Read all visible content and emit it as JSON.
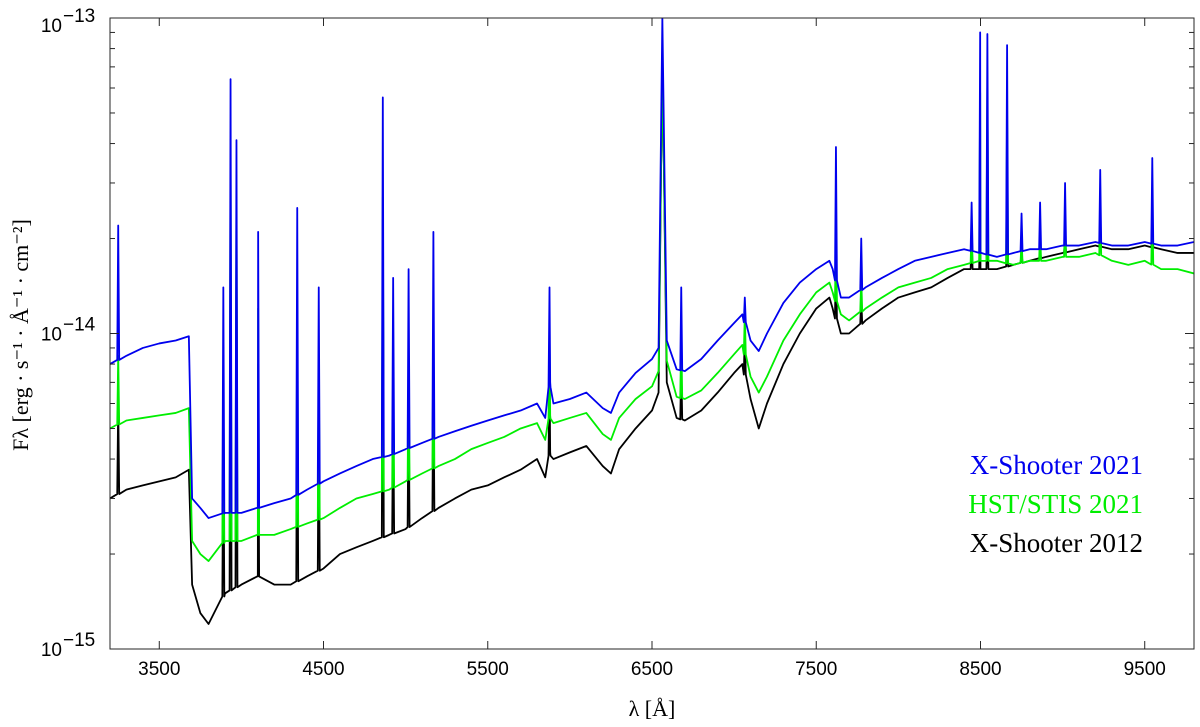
{
  "chart_data": {
    "type": "line",
    "xlabel": "λ [Å]",
    "ylabel": "Fλ [erg · s⁻¹ · Å⁻¹ · cm⁻²]",
    "xlim": [
      3200,
      9800
    ],
    "ylim": [
      1e-15,
      1e-13
    ],
    "yscale": "log",
    "grid": false,
    "legend_position": "bottom-right",
    "x_ticks": [
      3500,
      4500,
      5500,
      6500,
      7500,
      8500,
      9500
    ],
    "x_tick_labels": [
      "3500",
      "4500",
      "5500",
      "6500",
      "7500",
      "8500",
      "9500"
    ],
    "y_ticks": [
      {
        "value": 1e-15,
        "base": "10",
        "exp": "−15"
      },
      {
        "value": 1e-14,
        "base": "10",
        "exp": "−14"
      },
      {
        "value": 1e-13,
        "base": "10",
        "exp": "−13"
      }
    ],
    "series": [
      {
        "name": "X-Shooter 2012",
        "color": "#000000",
        "x": [
          3200,
          3300,
          3400,
          3500,
          3600,
          3680,
          3700,
          3750,
          3800,
          3900,
          4000,
          4100,
          4200,
          4300,
          4400,
          4500,
          4600,
          4700,
          4800,
          4900,
          5000,
          5100,
          5200,
          5300,
          5400,
          5500,
          5600,
          5700,
          5800,
          5850,
          5880,
          5900,
          6000,
          6100,
          6200,
          6250,
          6300,
          6400,
          6500,
          6540,
          6563,
          6590,
          6650,
          6700,
          6800,
          6900,
          7000,
          7050,
          7100,
          7150,
          7200,
          7300,
          7400,
          7500,
          7580,
          7600,
          7650,
          7700,
          7800,
          7900,
          8000,
          8100,
          8200,
          8300,
          8400,
          8500,
          8600,
          8700,
          8800,
          8900,
          9000,
          9100,
          9200,
          9300,
          9400,
          9500,
          9600,
          9700,
          9800
        ],
        "y": [
          3e-15,
          3.2e-15,
          3.3e-15,
          3.4e-15,
          3.5e-15,
          3.7e-15,
          1.6e-15,
          1.3e-15,
          1.2e-15,
          1.5e-15,
          1.6e-15,
          1.7e-15,
          1.6e-15,
          1.6e-15,
          1.7e-15,
          1.8e-15,
          2e-15,
          2.1e-15,
          2.2e-15,
          2.3e-15,
          2.4e-15,
          2.6e-15,
          2.8e-15,
          3e-15,
          3.2e-15,
          3.3e-15,
          3.5e-15,
          3.7e-15,
          4e-15,
          3.5e-15,
          4.2e-15,
          4e-15,
          4.2e-15,
          4.4e-15,
          3.8e-15,
          3.6e-15,
          4.3e-15,
          5e-15,
          5.7e-15,
          6.5e-15,
          7.7e-14,
          7e-15,
          5.4e-15,
          5.3e-15,
          5.7e-15,
          6.5e-15,
          7.5e-15,
          8e-15,
          6.2e-15,
          5e-15,
          6e-15,
          8e-15,
          1e-14,
          1.2e-14,
          1.3e-14,
          1.2e-14,
          1e-14,
          1e-14,
          1.1e-14,
          1.2e-14,
          1.3e-14,
          1.35e-14,
          1.4e-14,
          1.5e-14,
          1.6e-14,
          1.6e-14,
          1.6e-14,
          1.65e-14,
          1.7e-14,
          1.75e-14,
          1.8e-14,
          1.85e-14,
          1.9e-14,
          1.85e-14,
          1.85e-14,
          1.9e-14,
          1.85e-14,
          1.8e-14,
          1.8e-14
        ]
      },
      {
        "name": "HST/STIS 2021",
        "color": "#00ee00",
        "x": [
          3200,
          3300,
          3400,
          3500,
          3600,
          3680,
          3700,
          3750,
          3800,
          3900,
          4000,
          4100,
          4200,
          4300,
          4400,
          4500,
          4600,
          4700,
          4800,
          4900,
          5000,
          5100,
          5200,
          5300,
          5400,
          5500,
          5600,
          5700,
          5800,
          5850,
          5880,
          5900,
          6000,
          6100,
          6200,
          6250,
          6300,
          6400,
          6500,
          6540,
          6563,
          6590,
          6650,
          6700,
          6800,
          6900,
          7000,
          7050,
          7100,
          7150,
          7200,
          7300,
          7400,
          7500,
          7580,
          7600,
          7650,
          7700,
          7800,
          7900,
          8000,
          8100,
          8200,
          8300,
          8400,
          8500,
          8600,
          8700,
          8800,
          8900,
          9000,
          9100,
          9200,
          9300,
          9400,
          9500,
          9600,
          9700,
          9800
        ],
        "y": [
          5e-15,
          5.3e-15,
          5.4e-15,
          5.5e-15,
          5.6e-15,
          5.8e-15,
          2.2e-15,
          2e-15,
          1.9e-15,
          2.2e-15,
          2.2e-15,
          2.3e-15,
          2.3e-15,
          2.4e-15,
          2.5e-15,
          2.6e-15,
          2.8e-15,
          3e-15,
          3.1e-15,
          3.2e-15,
          3.4e-15,
          3.6e-15,
          3.8e-15,
          4e-15,
          4.3e-15,
          4.5e-15,
          4.7e-15,
          5e-15,
          5.2e-15,
          4.6e-15,
          5.5e-15,
          5.2e-15,
          5.4e-15,
          5.6e-15,
          4.8e-15,
          4.6e-15,
          5.4e-15,
          6.2e-15,
          6.8e-15,
          7.6e-15,
          7.3e-14,
          8.2e-15,
          6.3e-15,
          6.2e-15,
          6.6e-15,
          7.5e-15,
          8.6e-15,
          9.2e-15,
          7.3e-15,
          6.5e-15,
          7.3e-15,
          9.5e-15,
          1.15e-14,
          1.35e-14,
          1.45e-14,
          1.35e-14,
          1.15e-14,
          1.1e-14,
          1.2e-14,
          1.3e-14,
          1.4e-14,
          1.45e-14,
          1.5e-14,
          1.6e-14,
          1.65e-14,
          1.7e-14,
          1.7e-14,
          1.65e-14,
          1.7e-14,
          1.7e-14,
          1.75e-14,
          1.75e-14,
          1.8e-14,
          1.7e-14,
          1.65e-14,
          1.7e-14,
          1.6e-14,
          1.6e-14,
          1.55e-14
        ]
      },
      {
        "name": "X-Shooter 2021",
        "color": "#0000ee",
        "x": [
          3200,
          3300,
          3400,
          3500,
          3600,
          3680,
          3700,
          3750,
          3800,
          3900,
          4000,
          4100,
          4200,
          4300,
          4400,
          4500,
          4600,
          4700,
          4800,
          4900,
          5000,
          5100,
          5200,
          5300,
          5400,
          5500,
          5600,
          5700,
          5800,
          5850,
          5880,
          5900,
          6000,
          6100,
          6200,
          6250,
          6300,
          6400,
          6500,
          6540,
          6563,
          6590,
          6650,
          6700,
          6800,
          6900,
          7000,
          7050,
          7100,
          7150,
          7200,
          7300,
          7400,
          7500,
          7580,
          7600,
          7650,
          7700,
          7800,
          7900,
          8000,
          8100,
          8200,
          8300,
          8400,
          8500,
          8600,
          8700,
          8800,
          8900,
          9000,
          9100,
          9200,
          9300,
          9400,
          9500,
          9600,
          9700,
          9800
        ],
        "y": [
          8e-15,
          8.5e-15,
          9e-15,
          9.3e-15,
          9.5e-15,
          9.8e-15,
          3e-15,
          2.8e-15,
          2.6e-15,
          2.7e-15,
          2.7e-15,
          2.8e-15,
          2.9e-15,
          3e-15,
          3.2e-15,
          3.4e-15,
          3.6e-15,
          3.8e-15,
          4e-15,
          4.1e-15,
          4.3e-15,
          4.5e-15,
          4.7e-15,
          4.9e-15,
          5.1e-15,
          5.3e-15,
          5.5e-15,
          5.7e-15,
          6e-15,
          5.4e-15,
          7e-15,
          6e-15,
          6.2e-15,
          6.5e-15,
          5.8e-15,
          5.6e-15,
          6.5e-15,
          7.5e-15,
          8.3e-15,
          9e-15,
          1e-13,
          9.5e-15,
          7.7e-15,
          7.6e-15,
          8.3e-15,
          9.5e-15,
          1.08e-14,
          1.15e-14,
          9.5e-15,
          8.8e-15,
          1e-14,
          1.25e-14,
          1.45e-14,
          1.6e-14,
          1.7e-14,
          1.6e-14,
          1.3e-14,
          1.3e-14,
          1.4e-14,
          1.5e-14,
          1.6e-14,
          1.7e-14,
          1.75e-14,
          1.8e-14,
          1.85e-14,
          1.8e-14,
          1.75e-14,
          1.8e-14,
          1.85e-14,
          1.85e-14,
          1.9e-14,
          1.9e-14,
          1.95e-14,
          1.9e-14,
          1.9e-14,
          1.95e-14,
          1.9e-14,
          1.9e-14,
          1.95e-14
        ]
      }
    ],
    "lines": [
      {
        "wavelength": 3250,
        "peaks": [
          2.2e-14,
          8.5e-15,
          6e-15
        ]
      },
      {
        "wavelength": 3890,
        "peaks": [
          1.4e-14,
          7e-15,
          5e-15
        ]
      },
      {
        "wavelength": 3934,
        "peaks": [
          6.4e-14,
          3.7e-14,
          2.5e-14
        ]
      },
      {
        "wavelength": 3970,
        "peaks": [
          4.1e-14,
          2.8e-14,
          2e-14
        ]
      },
      {
        "wavelength": 4102,
        "peaks": [
          2.1e-14,
          1.2e-14,
          8e-15
        ]
      },
      {
        "wavelength": 4340,
        "peaks": [
          2.5e-14,
          1.2e-14,
          8.5e-15
        ]
      },
      {
        "wavelength": 4471,
        "peaks": [
          1.4e-14,
          8e-15,
          6e-15
        ]
      },
      {
        "wavelength": 4861,
        "peaks": [
          5.6e-14,
          2.7e-14,
          2.3e-14
        ]
      },
      {
        "wavelength": 4924,
        "peaks": [
          1.5e-14,
          8e-15,
          6e-15
        ]
      },
      {
        "wavelength": 5018,
        "peaks": [
          1.6e-14,
          8e-15,
          6.5e-15
        ]
      },
      {
        "wavelength": 5169,
        "peaks": [
          2.1e-14,
          1e-14,
          8e-15
        ]
      },
      {
        "wavelength": 5876,
        "peaks": [
          1.4e-14,
          1e-14,
          7.5e-15
        ]
      },
      {
        "wavelength": 6678,
        "peaks": [
          1.4e-14,
          1e-14,
          8e-15
        ]
      },
      {
        "wavelength": 7065,
        "peaks": [
          1.3e-14,
          1.15e-14,
          1e-14
        ]
      },
      {
        "wavelength": 7620,
        "peaks": [
          3.9e-14,
          2.1e-14,
          1.8e-14
        ]
      },
      {
        "wavelength": 7774,
        "peaks": [
          2e-14,
          1.5e-14,
          1.3e-14
        ]
      },
      {
        "wavelength": 8446,
        "peaks": [
          2.6e-14,
          2.2e-14,
          2e-14
        ]
      },
      {
        "wavelength": 8498,
        "peaks": [
          9e-14,
          5.8e-14,
          2.5e-14
        ]
      },
      {
        "wavelength": 8542,
        "peaks": [
          8.9e-14,
          6e-14,
          2.6e-14
        ]
      },
      {
        "wavelength": 8662,
        "peaks": [
          8.2e-14,
          5e-14,
          2.5e-14
        ]
      },
      {
        "wavelength": 8750,
        "peaks": [
          2.4e-14,
          2e-14,
          1.8e-14
        ]
      },
      {
        "wavelength": 8863,
        "peaks": [
          2.6e-14,
          2.1e-14,
          1.8e-14
        ]
      },
      {
        "wavelength": 9015,
        "peaks": [
          3e-14,
          2.3e-14,
          2e-14
        ]
      },
      {
        "wavelength": 9229,
        "peaks": [
          3.3e-14,
          2.5e-14,
          2.1e-14
        ]
      },
      {
        "wavelength": 9546,
        "peaks": [
          3.6e-14,
          2.6e-14,
          2.2e-14
        ]
      }
    ]
  },
  "legend": {
    "items": [
      {
        "label": "X-Shooter 2021",
        "color": "#0000ee"
      },
      {
        "label": "HST/STIS 2021",
        "color": "#00ee00"
      },
      {
        "label": "X-Shooter 2012",
        "color": "#000000"
      }
    ]
  }
}
